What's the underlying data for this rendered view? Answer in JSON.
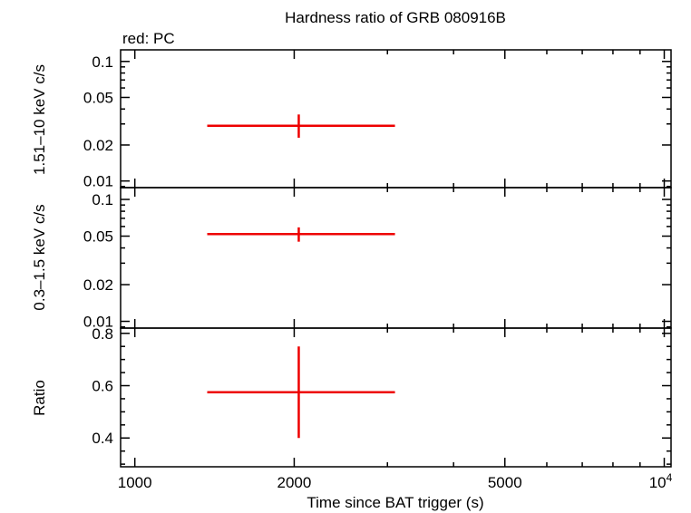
{
  "chart_data": {
    "type": "scatter",
    "title": "Hardness ratio of GRB 080916B",
    "legend_note": "red: PC",
    "xlabel": "Time since BAT trigger (s)",
    "x_scale": "log",
    "xlim": [
      940,
      10300
    ],
    "x_ticks": [
      {
        "value": 1000,
        "label": "1000"
      },
      {
        "value": 2000,
        "label": "2000"
      },
      {
        "value": 5000,
        "label": "5000"
      },
      {
        "value": 10000,
        "label": "10",
        "sup": "4"
      }
    ],
    "series_color": "#ee0000",
    "panels": [
      {
        "id": "hard-band",
        "ylabel": "1.51–10 keV c/s",
        "y_scale": "log",
        "ylim": [
          0.0088,
          0.125
        ],
        "y_ticks": [
          {
            "value": 0.01,
            "label": "0.01"
          },
          {
            "value": 0.02,
            "label": "0.02"
          },
          {
            "value": 0.05,
            "label": "0.05"
          },
          {
            "value": 0.1,
            "label": "0.1"
          }
        ],
        "points": [
          {
            "x": 2040,
            "x_low": 1370,
            "x_high": 3100,
            "y": 0.029,
            "y_low": 0.023,
            "y_high": 0.036
          }
        ]
      },
      {
        "id": "soft-band",
        "ylabel": "0.3–1.5 keV c/s",
        "y_scale": "log",
        "ylim": [
          0.0088,
          0.125
        ],
        "y_ticks": [
          {
            "value": 0.01,
            "label": "0.01"
          },
          {
            "value": 0.02,
            "label": "0.02"
          },
          {
            "value": 0.05,
            "label": "0.05"
          },
          {
            "value": 0.1,
            "label": "0.1"
          }
        ],
        "points": [
          {
            "x": 2040,
            "x_low": 1370,
            "x_high": 3100,
            "y": 0.052,
            "y_low": 0.045,
            "y_high": 0.059
          }
        ]
      },
      {
        "id": "ratio",
        "ylabel": "Ratio",
        "y_scale": "linear",
        "ylim": [
          0.29,
          0.82
        ],
        "y_ticks": [
          {
            "value": 0.4,
            "label": "0.4"
          },
          {
            "value": 0.6,
            "label": "0.6"
          },
          {
            "value": 0.8,
            "label": "0.8"
          }
        ],
        "minor_step": 0.05,
        "points": [
          {
            "x": 2040,
            "x_low": 1370,
            "x_high": 3100,
            "y": 0.575,
            "y_low": 0.4,
            "y_high": 0.75
          }
        ]
      }
    ]
  }
}
